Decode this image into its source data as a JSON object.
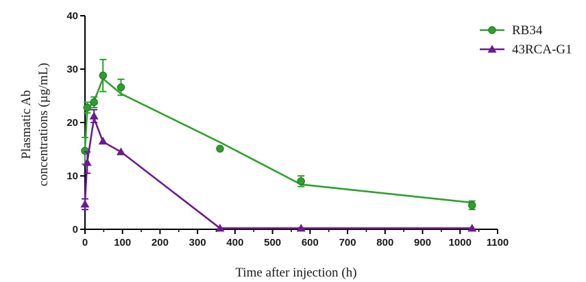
{
  "chart_data": {
    "type": "line",
    "xlabel": "Time after injection (h)",
    "ylabel_lines": [
      "Plasmatic Ab",
      "concentrations (µg/mL)"
    ],
    "xlim": [
      0,
      1100
    ],
    "ylim": [
      0,
      40
    ],
    "x_ticks": [
      0,
      100,
      200,
      300,
      400,
      500,
      600,
      700,
      800,
      900,
      1000,
      1100
    ],
    "y_ticks": [
      0,
      10,
      20,
      30,
      40
    ],
    "grid": false,
    "legend_position": "top-right",
    "series": [
      {
        "name": "RB34",
        "color": "#2ca02c",
        "marker": "circle",
        "points": [
          {
            "x": 0,
            "y": 14.7,
            "err": 2.5
          },
          {
            "x": 6,
            "y": 22.8,
            "err": 1.0
          },
          {
            "x": 24,
            "y": 23.8,
            "err": 1.0
          },
          {
            "x": 48,
            "y": 28.8,
            "err": 3.0
          },
          {
            "x": 96,
            "y": 26.6,
            "err": 1.5
          },
          {
            "x": 360,
            "y": 15.1,
            "err": 0
          },
          {
            "x": 576,
            "y": 9.0,
            "err": 1.0
          },
          {
            "x": 1032,
            "y": 4.5,
            "err": 0.8
          }
        ],
        "fit": [
          [
            0,
            15
          ],
          [
            6,
            22.5
          ],
          [
            24,
            24
          ],
          [
            48,
            28.2
          ],
          [
            96,
            25.4
          ],
          [
            360,
            16.3
          ],
          [
            576,
            8.4
          ],
          [
            1032,
            5.0
          ]
        ]
      },
      {
        "name": "43RCA-G1",
        "color": "#6a1b8f",
        "marker": "triangle",
        "points": [
          {
            "x": 0,
            "y": 4.7,
            "err": 1.0
          },
          {
            "x": 6,
            "y": 12.5,
            "err": 2.0
          },
          {
            "x": 24,
            "y": 21.2,
            "err": 1.2
          },
          {
            "x": 48,
            "y": 16.5,
            "err": 0
          },
          {
            "x": 96,
            "y": 14.5,
            "err": 0
          },
          {
            "x": 360,
            "y": 0.2,
            "err": 0
          },
          {
            "x": 576,
            "y": 0.2,
            "err": 0
          },
          {
            "x": 1032,
            "y": 0.2,
            "err": 0
          }
        ],
        "fit": [
          [
            0,
            5.2
          ],
          [
            6,
            12.6
          ],
          [
            24,
            20.8
          ],
          [
            48,
            16.4
          ],
          [
            96,
            14.5
          ],
          [
            360,
            0.2
          ],
          [
            576,
            0.2
          ],
          [
            1032,
            0.2
          ]
        ]
      }
    ]
  }
}
